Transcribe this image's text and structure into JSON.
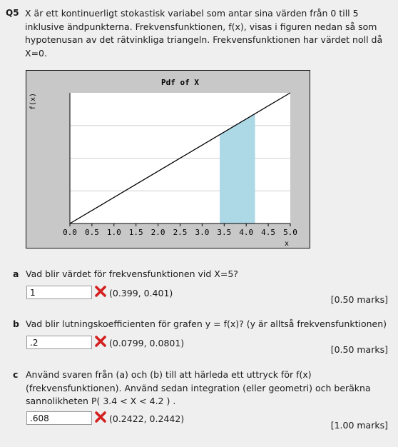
{
  "question": {
    "number": "Q5",
    "lines": [
      "X är ett kontinuerligt stokastisk variabel som antar sina värden från 0 till 5",
      "inklusive ändpunkterna. Frekvensfunktionen, f(x), visas i figuren nedan så som",
      "hypotenusan av det rätvinkliga triangeln. Frekvensfunktionen har värdet noll då",
      "X=0."
    ]
  },
  "chart_data": {
    "type": "line",
    "title": "Pdf of X",
    "xlabel": "x",
    "ylabel": "f(x)",
    "xlim": [
      0,
      5
    ],
    "ylim": [
      0,
      0.4
    ],
    "x_ticks": [
      "0.0",
      "0.5",
      "1.0",
      "1.5",
      "2.0",
      "2.5",
      "3.0",
      "3.5",
      "4.0",
      "4.5",
      "5.0"
    ],
    "series": [
      {
        "x": [
          0,
          5
        ],
        "y": [
          0,
          0.4
        ]
      }
    ],
    "shaded_region": {
      "x_from": 3.4,
      "x_to": 4.2
    },
    "grid": "horizontal",
    "colors": {
      "line": "#000000",
      "shade": "#add8e6",
      "plot_bg": "#ffffff",
      "frame_bg": "#c8c8c8",
      "grid": "#d0d0d0"
    }
  },
  "parts": [
    {
      "letter": "a",
      "lines": [
        "Vad blir värdet för frekvensfunktionen vid X=5?"
      ],
      "answer": "1",
      "range": "(0.399, 0.401)",
      "marks": "[0.50 marks]"
    },
    {
      "letter": "b",
      "lines": [
        "Vad blir lutningskoefficienten för grafen y = f(x)? (y är alltså frekvensfunktionen)"
      ],
      "answer": ".2",
      "range": "(0.0799, 0.0801)",
      "marks": "[0.50 marks]"
    },
    {
      "letter": "c",
      "lines": [
        "Använd svaren från (a) och (b) till att härleda ett uttryck för f(x)",
        "(frekvensfunktionen). Använd sedan integration (eller geometri) och beräkna",
        "sannolikheten P( 3.4 < X < 4.2 ) ."
      ],
      "answer": ".608",
      "range": "(0.2422, 0.2442)",
      "marks": "[1.00 marks]"
    }
  ],
  "icons": {
    "wrong": "red-x-icon"
  },
  "colors": {
    "wrong": "#d42020",
    "page_bg": "#efefef"
  }
}
